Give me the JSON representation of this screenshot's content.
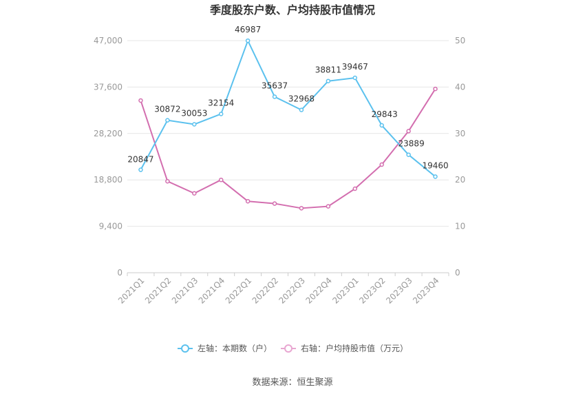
{
  "chart_data": {
    "type": "line",
    "title": "季度股东户数、户均持股市值情况",
    "categories": [
      "2021Q1",
      "2021Q2",
      "2021Q3",
      "2021Q4",
      "2022Q1",
      "2022Q2",
      "2022Q3",
      "2022Q4",
      "2023Q1",
      "2023Q2",
      "2023Q3",
      "2023Q4"
    ],
    "left_axis": {
      "min": 0,
      "max": 47000,
      "ticks": [
        "0",
        "9,400",
        "18,800",
        "28,200",
        "37,600",
        "47,000"
      ],
      "tick_values": [
        0,
        9400,
        18800,
        28200,
        37600,
        47000
      ]
    },
    "right_axis": {
      "min": 0,
      "max": 50,
      "ticks": [
        "0",
        "10",
        "20",
        "30",
        "40",
        "50"
      ],
      "tick_values": [
        0,
        10,
        20,
        30,
        40,
        50
      ]
    },
    "series": [
      {
        "name": "左轴：本期数（户）",
        "axis": "left",
        "color": "#5bc1ee",
        "values": [
          20847,
          30872,
          30053,
          32154,
          46987,
          35637,
          32968,
          38811,
          39467,
          29843,
          23889,
          19460
        ],
        "labels": [
          "20847",
          "30872",
          "30053",
          "32154",
          "46987",
          "35637",
          "32968",
          "38811",
          "39467",
          "29843",
          "23889",
          "19460"
        ]
      },
      {
        "name": "右轴：户均持股市值（万元）",
        "axis": "right",
        "color": "#d36eaf",
        "values": [
          37.1,
          19.7,
          17.1,
          20.0,
          15.4,
          14.9,
          13.9,
          14.3,
          18.1,
          23.3,
          30.5,
          39.6
        ]
      }
    ],
    "grid": true,
    "legend_position": "bottom"
  },
  "source": "数据来源：恒生聚源"
}
